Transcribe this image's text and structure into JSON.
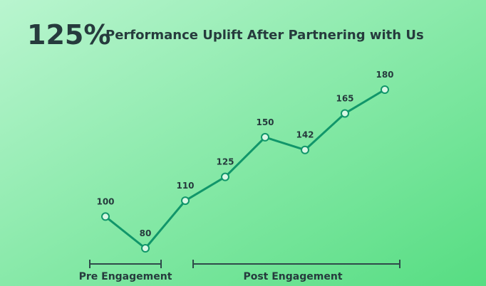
{
  "chart_data": {
    "type": "line",
    "title_highlight": "125%",
    "title": "Performance Uplift After Partnering with Us",
    "categories": [
      null,
      null,
      null,
      null,
      null,
      null,
      null,
      null
    ],
    "values": [
      100,
      80,
      110,
      125,
      150,
      142,
      165,
      180
    ],
    "color": "#11966a",
    "annotations": [
      "Pre Engagement",
      "Post Engagement"
    ]
  }
}
